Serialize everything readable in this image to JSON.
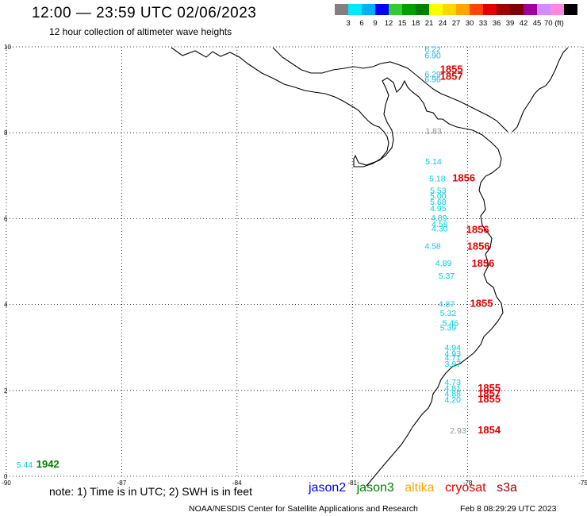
{
  "header": {
    "title": "12:00 — 23:59 UTC 02/06/2023",
    "subtitle": "12 hour collection of altimeter wave heights"
  },
  "colorbar": {
    "labels": [
      "3",
      "6",
      "9",
      "12",
      "15",
      "18",
      "21",
      "24",
      "27",
      "30",
      "33",
      "36",
      "39",
      "42",
      "45",
      "70 (ft)"
    ],
    "colors": [
      "#808080",
      "#00eaff",
      "#00b0f0",
      "#0000ff",
      "#33cc33",
      "#00a000",
      "#008000",
      "#ffff00",
      "#ffd700",
      "#ffa500",
      "#ff4500",
      "#e00000",
      "#a00000",
      "#800000",
      "#a000a0",
      "#d08cff",
      "#ff88dd",
      "#000000"
    ]
  },
  "map": {
    "x_range": [
      -90,
      -75
    ],
    "y_range": [
      0,
      10
    ],
    "x_ticks": [
      "-90",
      "-87",
      "-84",
      "-81",
      "-78",
      "-75"
    ],
    "y_ticks": [
      "0",
      "2",
      "4",
      "6",
      "8",
      "10"
    ],
    "grid": true
  },
  "observations": [
    {
      "v": "6.22",
      "lon": -79.12,
      "lat": 9.88,
      "c": "#20b0e0"
    },
    {
      "v": "6.90",
      "lon": -79.12,
      "lat": 9.73,
      "c": "#20b0e0"
    },
    {
      "v": "6.29",
      "lon": -79.12,
      "lat": 9.3,
      "c": "#20b0e0"
    },
    {
      "v": "6.96",
      "lon": -79.12,
      "lat": 9.18,
      "c": "#20b0e0"
    },
    {
      "v": "1.83",
      "lon": -79.1,
      "lat": 7.98,
      "c": "#909090"
    },
    {
      "v": "5.14",
      "lon": -79.1,
      "lat": 7.26,
      "c": "#00ccdd"
    },
    {
      "v": "5.18",
      "lon": -79.0,
      "lat": 6.87,
      "c": "#00ccdd"
    },
    {
      "v": "5.53",
      "lon": -78.98,
      "lat": 6.59,
      "c": "#00ccdd"
    },
    {
      "v": "5.00",
      "lon": -78.98,
      "lat": 6.46,
      "c": "#00ccdd"
    },
    {
      "v": "5.68",
      "lon": -78.98,
      "lat": 6.32,
      "c": "#00ccdd"
    },
    {
      "v": "4.95",
      "lon": -78.98,
      "lat": 6.17,
      "c": "#00ccdd"
    },
    {
      "v": "4.89",
      "lon": -78.96,
      "lat": 5.95,
      "c": "#00ccdd"
    },
    {
      "v": "4.58",
      "lon": -78.94,
      "lat": 5.8,
      "c": "#00ccdd"
    },
    {
      "v": "4.30",
      "lon": -78.94,
      "lat": 5.7,
      "c": "#00ccdd"
    },
    {
      "v": "4.58",
      "lon": -79.12,
      "lat": 5.3,
      "c": "#00ccdd"
    },
    {
      "v": "4.89",
      "lon": -78.84,
      "lat": 4.9,
      "c": "#00ccdd"
    },
    {
      "v": "5.37",
      "lon": -78.76,
      "lat": 4.6,
      "c": "#00ccdd"
    },
    {
      "v": "4.87",
      "lon": -78.76,
      "lat": 3.95,
      "c": "#00ccdd"
    },
    {
      "v": "5.32",
      "lon": -78.72,
      "lat": 3.73,
      "c": "#00ccdd"
    },
    {
      "v": "5.46",
      "lon": -78.66,
      "lat": 3.5,
      "c": "#00ccdd"
    },
    {
      "v": "5.39",
      "lon": -78.72,
      "lat": 3.39,
      "c": "#00ccdd"
    },
    {
      "v": "4.94",
      "lon": -78.6,
      "lat": 2.93,
      "c": "#00ccdd"
    },
    {
      "v": "4.93",
      "lon": -78.6,
      "lat": 2.79,
      "c": "#00ccdd"
    },
    {
      "v": "4.71",
      "lon": -78.6,
      "lat": 2.7,
      "c": "#00ccdd"
    },
    {
      "v": "3.97",
      "lon": -78.6,
      "lat": 2.55,
      "c": "#00ccdd"
    },
    {
      "v": "4.73",
      "lon": -78.6,
      "lat": 2.13,
      "c": "#00ccdd"
    },
    {
      "v": "4.81",
      "lon": -78.6,
      "lat": 1.99,
      "c": "#00ccdd"
    },
    {
      "v": "4.88",
      "lon": -78.6,
      "lat": 1.86,
      "c": "#00ccdd"
    },
    {
      "v": "4.20",
      "lon": -78.6,
      "lat": 1.72,
      "c": "#00ccdd"
    },
    {
      "v": "2.93",
      "lon": -78.46,
      "lat": 1.0,
      "c": "#909090"
    },
    {
      "v": "5.44",
      "lon": -89.74,
      "lat": 0.2,
      "c": "#00ccdd"
    }
  ],
  "passes": [
    {
      "t": "1855",
      "lon": -78.72,
      "lat": 9.4,
      "c": "#e00000"
    },
    {
      "t": "1857",
      "lon": -78.72,
      "lat": 9.23,
      "c": "#e00000"
    },
    {
      "t": "1856",
      "lon": -78.4,
      "lat": 6.87,
      "c": "#e00000"
    },
    {
      "t": "1856",
      "lon": -78.04,
      "lat": 5.67,
      "c": "#e00000"
    },
    {
      "t": "1856",
      "lon": -78.02,
      "lat": 5.28,
      "c": "#e00000"
    },
    {
      "t": "1856",
      "lon": -77.9,
      "lat": 4.88,
      "c": "#e00000"
    },
    {
      "t": "1855",
      "lon": -77.94,
      "lat": 3.95,
      "c": "#e00000"
    },
    {
      "t": "1855",
      "lon": -77.74,
      "lat": 1.98,
      "c": "#e00000"
    },
    {
      "t": "1857",
      "lon": -77.74,
      "lat": 1.85,
      "c": "#e00000"
    },
    {
      "t": "1855",
      "lon": -77.74,
      "lat": 1.72,
      "c": "#e00000"
    },
    {
      "t": "1854",
      "lon": -77.74,
      "lat": 1.0,
      "c": "#e00000"
    },
    {
      "t": "1942",
      "lon": -89.22,
      "lat": 0.2,
      "c": "#008000"
    }
  ],
  "footer": {
    "note": "note:  1) Time is in UTC;  2) SWH is in feet",
    "legend": [
      {
        "name": "jason2",
        "color": "#0000ff"
      },
      {
        "name": "jason3",
        "color": "#008000"
      },
      {
        "name": "altika",
        "color": "#ffa500"
      },
      {
        "name": "cryosat",
        "color": "#e00000"
      },
      {
        "name": "s3a",
        "color": "#a00000"
      }
    ],
    "credit": "NOAA/NESDIS Center for Satellite Applications and Research",
    "timestamp": "Feb  8 08:29:29 UTC 2023"
  }
}
